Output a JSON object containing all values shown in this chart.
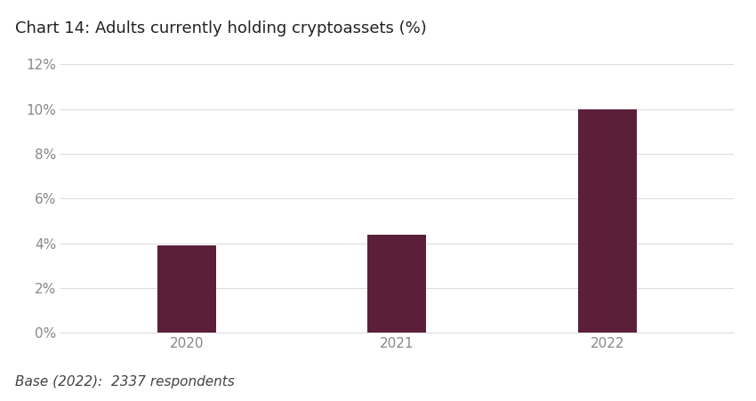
{
  "title": "Chart 14: Adults currently holding cryptoassets (%)",
  "categories": [
    "2020",
    "2021",
    "2022"
  ],
  "values": [
    3.9,
    4.4,
    10.0
  ],
  "bar_color": "#5C1F3A",
  "ylim": [
    0,
    0.12
  ],
  "yticks": [
    0,
    0.02,
    0.04,
    0.06,
    0.08,
    0.1,
    0.12
  ],
  "ytick_labels": [
    "0%",
    "2%",
    "4%",
    "6%",
    "8%",
    "10%",
    "12%"
  ],
  "footnote": "Base (2022):  2337 respondents",
  "background_color": "#ffffff",
  "plot_bg_color": "#ffffff",
  "grid_color": "#dddddd",
  "title_fontsize": 13,
  "tick_fontsize": 11,
  "footnote_fontsize": 11,
  "bar_width": 0.28,
  "x_positions": [
    1.0,
    2.0,
    3.0
  ],
  "xlim": [
    0.4,
    3.6
  ]
}
